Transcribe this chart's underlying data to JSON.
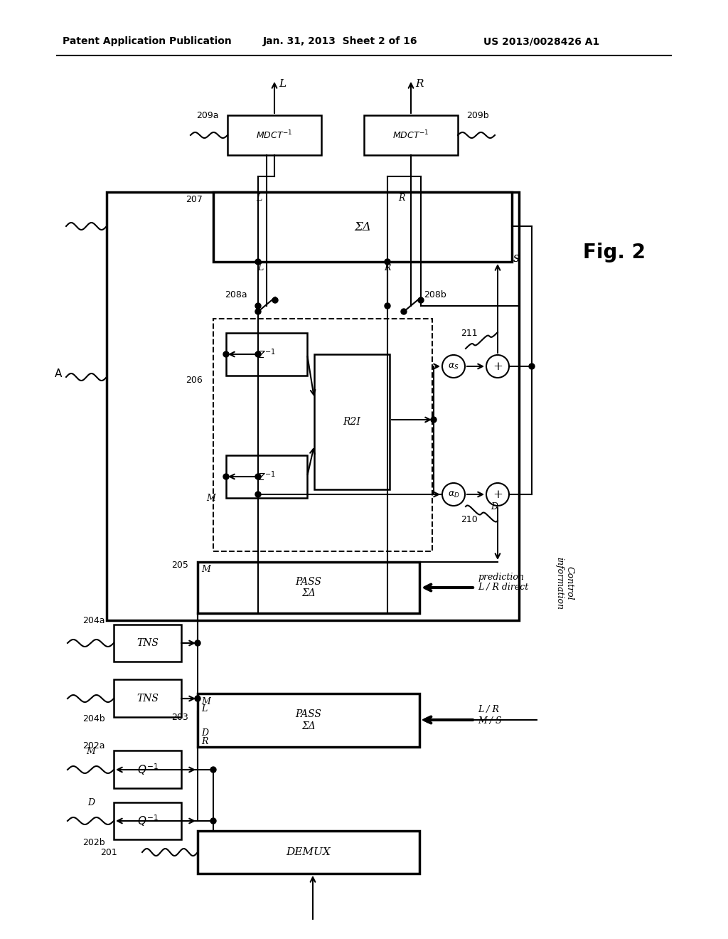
{
  "bg_color": "#ffffff",
  "header_text1": "Patent Application Publication",
  "header_text2": "Jan. 31, 2013  Sheet 2 of 16",
  "header_text3": "US 2013/0028426 A1",
  "fig_label": "Fig. 2"
}
